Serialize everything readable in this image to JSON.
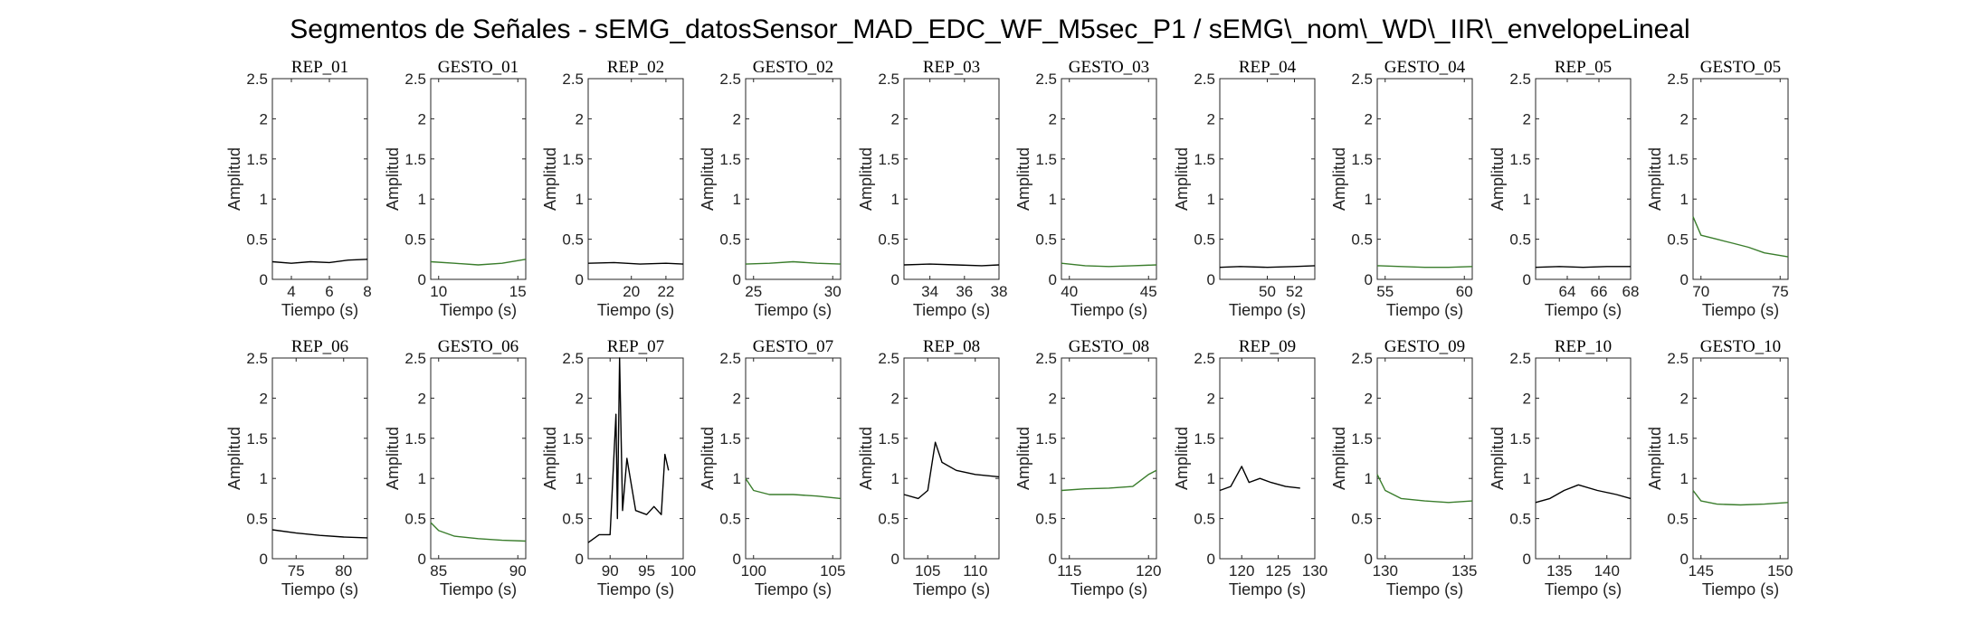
{
  "figure": {
    "title": "Segmentos de Señales - sEMG_datosSensor_MAD_EDC_WF_M5sec_P1 / sEMG\\_nom\\_WD\\_IIR\\_envelopeLineal"
  },
  "chart_data": {
    "type": "line",
    "layout": "2x10 small multiples",
    "xlabel": "Tiempo (s)",
    "ylabel": "Amplitud",
    "ylim": [
      0,
      2.5
    ],
    "yticks": [
      "0",
      "0.5",
      "1",
      "1.5",
      "2",
      "2.5"
    ],
    "colors": {
      "rep": "#000000",
      "gesto": "#3a7d2c"
    },
    "grid": false,
    "panels": [
      {
        "title": "REP_01",
        "kind": "rep",
        "xlim": [
          3,
          8
        ],
        "xticks": [
          4,
          6,
          8
        ],
        "x": [
          3,
          4,
          5,
          6,
          7,
          8
        ],
        "y": [
          0.22,
          0.2,
          0.22,
          0.21,
          0.24,
          0.25
        ]
      },
      {
        "title": "GESTO_01",
        "kind": "gesto",
        "xlim": [
          9.5,
          15.5
        ],
        "xticks": [
          10,
          15
        ],
        "x": [
          9.5,
          11,
          12.5,
          14,
          15.5
        ],
        "y": [
          0.22,
          0.2,
          0.18,
          0.2,
          0.25
        ]
      },
      {
        "title": "REP_02",
        "kind": "rep",
        "xlim": [
          17.5,
          23
        ],
        "xticks": [
          20,
          22
        ],
        "x": [
          17.5,
          19,
          20.5,
          22,
          23
        ],
        "y": [
          0.2,
          0.21,
          0.19,
          0.2,
          0.19
        ]
      },
      {
        "title": "GESTO_02",
        "kind": "gesto",
        "xlim": [
          24.5,
          30.5
        ],
        "xticks": [
          25,
          30
        ],
        "x": [
          24.5,
          26,
          27.5,
          29,
          30.5
        ],
        "y": [
          0.19,
          0.2,
          0.22,
          0.2,
          0.19
        ]
      },
      {
        "title": "REP_03",
        "kind": "rep",
        "xlim": [
          32.5,
          38
        ],
        "xticks": [
          34,
          36,
          38
        ],
        "x": [
          32.5,
          34,
          35.5,
          37,
          38
        ],
        "y": [
          0.18,
          0.19,
          0.18,
          0.17,
          0.18
        ]
      },
      {
        "title": "GESTO_03",
        "kind": "gesto",
        "xlim": [
          39.5,
          45.5
        ],
        "xticks": [
          40,
          45
        ],
        "x": [
          39.5,
          41,
          42.5,
          44,
          45.5
        ],
        "y": [
          0.2,
          0.17,
          0.16,
          0.17,
          0.18
        ]
      },
      {
        "title": "REP_04",
        "kind": "rep",
        "xlim": [
          46.5,
          53.5
        ],
        "xticks": [
          50,
          52
        ],
        "x": [
          46.5,
          48,
          50,
          52,
          53.5
        ],
        "y": [
          0.15,
          0.16,
          0.15,
          0.16,
          0.17
        ]
      },
      {
        "title": "GESTO_04",
        "kind": "gesto",
        "xlim": [
          54.5,
          60.5
        ],
        "xticks": [
          55,
          60
        ],
        "x": [
          54.5,
          56,
          57.5,
          59,
          60.5
        ],
        "y": [
          0.17,
          0.16,
          0.15,
          0.15,
          0.16
        ]
      },
      {
        "title": "REP_05",
        "kind": "rep",
        "xlim": [
          62,
          68
        ],
        "xticks": [
          64,
          66,
          68
        ],
        "x": [
          62,
          63.5,
          65,
          66.5,
          68
        ],
        "y": [
          0.15,
          0.16,
          0.15,
          0.16,
          0.16
        ]
      },
      {
        "title": "GESTO_05",
        "kind": "gesto",
        "xlim": [
          69.5,
          75.5
        ],
        "xticks": [
          70,
          75
        ],
        "x": [
          69.5,
          70,
          71,
          72,
          73,
          74,
          75.5
        ],
        "y": [
          0.78,
          0.55,
          0.5,
          0.45,
          0.4,
          0.33,
          0.28
        ]
      },
      {
        "title": "REP_06",
        "kind": "rep",
        "xlim": [
          72.5,
          82.5
        ],
        "xticks": [
          75,
          80
        ],
        "x": [
          72.5,
          75,
          77.5,
          80,
          82.5
        ],
        "y": [
          0.36,
          0.32,
          0.29,
          0.27,
          0.26
        ]
      },
      {
        "title": "GESTO_06",
        "kind": "gesto",
        "xlim": [
          84.5,
          90.5
        ],
        "xticks": [
          85,
          90
        ],
        "x": [
          84.5,
          85,
          86,
          87.5,
          89,
          90.5
        ],
        "y": [
          0.45,
          0.35,
          0.28,
          0.25,
          0.23,
          0.22
        ]
      },
      {
        "title": "REP_07",
        "kind": "rep",
        "xlim": [
          87,
          100
        ],
        "xticks": [
          90,
          95,
          100
        ],
        "x": [
          87,
          88.5,
          90,
          90.8,
          91,
          91.3,
          91.7,
          92.3,
          93.5,
          95,
          96,
          97,
          97.5,
          98
        ],
        "y": [
          0.2,
          0.3,
          0.3,
          1.8,
          0.5,
          2.5,
          0.6,
          1.25,
          0.6,
          0.55,
          0.65,
          0.55,
          1.3,
          1.1
        ]
      },
      {
        "title": "GESTO_07",
        "kind": "gesto",
        "xlim": [
          99.5,
          105.5
        ],
        "xticks": [
          100,
          105
        ],
        "x": [
          99.5,
          100,
          101,
          102.5,
          104,
          105.5
        ],
        "y": [
          1.0,
          0.85,
          0.8,
          0.8,
          0.78,
          0.75
        ]
      },
      {
        "title": "REP_08",
        "kind": "rep",
        "xlim": [
          102.5,
          112.5
        ],
        "xticks": [
          105,
          110
        ],
        "x": [
          102.5,
          104,
          105,
          105.8,
          106.5,
          108,
          110,
          112.5
        ],
        "y": [
          0.8,
          0.75,
          0.85,
          1.45,
          1.2,
          1.1,
          1.05,
          1.02
        ]
      },
      {
        "title": "GESTO_08",
        "kind": "gesto",
        "xlim": [
          114.5,
          120.5
        ],
        "xticks": [
          115,
          120
        ],
        "x": [
          114.5,
          116,
          117.5,
          119,
          120,
          120.5
        ],
        "y": [
          0.85,
          0.87,
          0.88,
          0.9,
          1.05,
          1.1
        ]
      },
      {
        "title": "REP_09",
        "kind": "rep",
        "xlim": [
          117,
          130
        ],
        "xticks": [
          120,
          125,
          130
        ],
        "x": [
          117,
          118.5,
          120,
          121,
          122.5,
          124,
          126,
          128
        ],
        "y": [
          0.85,
          0.9,
          1.15,
          0.95,
          1.0,
          0.95,
          0.9,
          0.88
        ]
      },
      {
        "title": "GESTO_09",
        "kind": "gesto",
        "xlim": [
          129.5,
          135.5
        ],
        "xticks": [
          130,
          135
        ],
        "x": [
          129.5,
          130,
          131,
          132.5,
          134,
          135.5
        ],
        "y": [
          1.05,
          0.85,
          0.75,
          0.72,
          0.7,
          0.72
        ]
      },
      {
        "title": "REP_10",
        "kind": "rep",
        "xlim": [
          132.5,
          142.5
        ],
        "xticks": [
          135,
          140
        ],
        "x": [
          132.5,
          134,
          135.5,
          137,
          139,
          141,
          142.5
        ],
        "y": [
          0.7,
          0.75,
          0.85,
          0.92,
          0.85,
          0.8,
          0.75
        ]
      },
      {
        "title": "GESTO_10",
        "kind": "gesto",
        "xlim": [
          144.5,
          150.5
        ],
        "xticks": [
          145,
          150
        ],
        "x": [
          144.5,
          145,
          146,
          147.5,
          149,
          150.5
        ],
        "y": [
          0.85,
          0.72,
          0.68,
          0.67,
          0.68,
          0.7
        ]
      }
    ]
  }
}
